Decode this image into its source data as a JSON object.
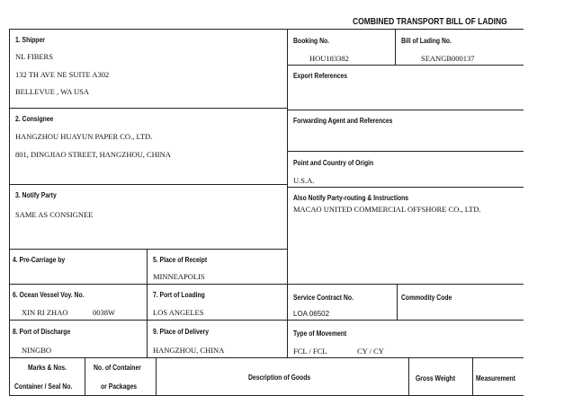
{
  "title": "COMBINED TRANSPORT BILL OF LADING",
  "shipper": {
    "label": "1. Shipper",
    "lines": [
      "NL FIBERS",
      "132 TH AVE NE SUITE A302",
      "BELLEVUE , WA USA"
    ]
  },
  "consignee": {
    "label": "2. Consignee",
    "lines": [
      "HANGZHOU HUAYUN PAPER CO., LTD.",
      "801, DINGJIAO STREET, HANGZHOU, CHINA"
    ]
  },
  "notify": {
    "label": "3. Notify Party",
    "value": "SAME AS CONSIGNEE"
  },
  "booking": {
    "label": "Booking No.",
    "value": "HOU183382"
  },
  "bol": {
    "label": "Bill of Lading No.",
    "value": "SEANGB000137"
  },
  "export_refs": {
    "label": "Export References"
  },
  "forwarding": {
    "label": "Forwarding Agent and References"
  },
  "origin": {
    "label": "Point and Country of Origin",
    "value": "U.S.A."
  },
  "also_notify": {
    "label": "Also Notify Party-routing & Instructions",
    "value": "MACAO UNITED COMMERCIAL OFFSHORE CO., LTD."
  },
  "pre_carriage": {
    "label": "4. Pre-Carriage by"
  },
  "receipt": {
    "label": "5. Place of Receipt",
    "value": "MINNEAPOLIS"
  },
  "vessel": {
    "label": "6. Ocean Vessel Voy. No.",
    "name": "XIN RI ZHAO",
    "voyage": "0038W"
  },
  "loading": {
    "label": "7. Port of Loading",
    "value": "LOS ANGELES"
  },
  "service_contract": {
    "label": "Service Contract No.",
    "value": "LOA 06502"
  },
  "commodity": {
    "label": "Commodity Code"
  },
  "discharge": {
    "label": "8. Port of Discharge",
    "value": "NINGBO"
  },
  "delivery": {
    "label": "9. Place of Delivery",
    "value": "HANGZHOU, CHINA"
  },
  "movement": {
    "label": "Type of Movement",
    "value1": "FCL / FCL",
    "value2": "CY / CY"
  },
  "columns": {
    "marks1": "Marks & Nos.",
    "marks2": "Container / Seal No.",
    "pkg1": "No. of Container",
    "pkg2": "or Packages",
    "desc": "Description of Goods",
    "weight": "Gross Weight",
    "measure": "Measurement"
  }
}
